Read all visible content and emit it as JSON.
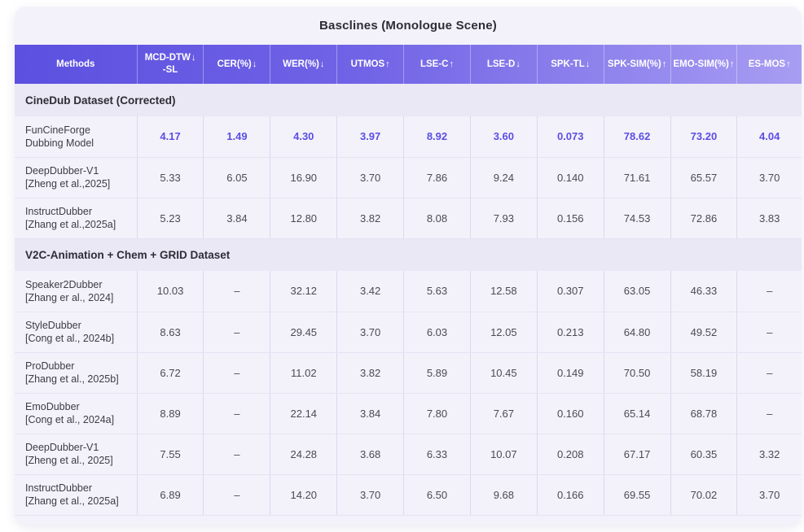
{
  "title": "Basclines (Monologue Scene)",
  "colors": {
    "header_gradient_left": "#5b50e0",
    "header_gradient_right": "#a79df2",
    "highlight_value": "#5b4ee2",
    "card_background": "#f3f2fa",
    "section_background": "#eae8f4",
    "header_text": "#ffffff",
    "body_text": "#4b4a54"
  },
  "table": {
    "columns": [
      {
        "lines": [
          "Methods"
        ],
        "arrow": ""
      },
      {
        "lines": [
          "MCD-DTW",
          "-SL"
        ],
        "arrow": "↓"
      },
      {
        "lines": [
          "CER(%)"
        ],
        "arrow": "↓"
      },
      {
        "lines": [
          "WER(%)"
        ],
        "arrow": "↓"
      },
      {
        "lines": [
          "UTMOS"
        ],
        "arrow": "↑"
      },
      {
        "lines": [
          "LSE-C"
        ],
        "arrow": "↑"
      },
      {
        "lines": [
          "LSE-D"
        ],
        "arrow": "↓"
      },
      {
        "lines": [
          "SPK-TL"
        ],
        "arrow": "↓"
      },
      {
        "lines": [
          "SPK-SIM(%)"
        ],
        "arrow": "↑"
      },
      {
        "lines": [
          "EMO-SIM(%)"
        ],
        "arrow": "↑"
      },
      {
        "lines": [
          "ES-MOS"
        ],
        "arrow": "↑"
      }
    ],
    "sections": [
      {
        "header": "CineDub Dataset (Corrected)",
        "rows": [
          {
            "method": [
              "FunCineForge",
              "Dubbing Model"
            ],
            "highlight": true,
            "values": [
              "4.17",
              "1.49",
              "4.30",
              "3.97",
              "8.92",
              "3.60",
              "0.073",
              "78.62",
              "73.20",
              "4.04"
            ]
          },
          {
            "method": [
              "DeepDubber-V1",
              "[Zheng et al.,2025]"
            ],
            "highlight": false,
            "values": [
              "5.33",
              "6.05",
              "16.90",
              "3.70",
              "7.86",
              "9.24",
              "0.140",
              "71.61",
              "65.57",
              "3.70"
            ]
          },
          {
            "method": [
              "InstructDubber",
              "[Zhang et al.,2025a]"
            ],
            "highlight": false,
            "values": [
              "5.23",
              "3.84",
              "12.80",
              "3.82",
              "8.08",
              "7.93",
              "0.156",
              "74.53",
              "72.86",
              "3.83"
            ]
          }
        ]
      },
      {
        "header": "V2C-Animation + Chem + GRID Dataset",
        "rows": [
          {
            "method": [
              "Speaker2Dubber",
              "[Zhang er al., 2024]"
            ],
            "highlight": false,
            "values": [
              "10.03",
              "–",
              "32.12",
              "3.42",
              "5.63",
              "12.58",
              "0.307",
              "63.05",
              "46.33",
              "–"
            ]
          },
          {
            "method": [
              "StyleDubber",
              "[Cong et al., 2024b]"
            ],
            "highlight": false,
            "values": [
              "8.63",
              "–",
              "29.45",
              "3.70",
              "6.03",
              "12.05",
              "0.213",
              "64.80",
              "49.52",
              "–"
            ]
          },
          {
            "method": [
              "ProDubber",
              "[Zhang et al., 2025b]"
            ],
            "highlight": false,
            "values": [
              "6.72",
              "–",
              "11.02",
              "3.82",
              "5.89",
              "10.45",
              "0.149",
              "70.50",
              "58.19",
              "–"
            ]
          },
          {
            "method": [
              "EmoDubber",
              "[Cong et al., 2024a]"
            ],
            "highlight": false,
            "values": [
              "8.89",
              "–",
              "22.14",
              "3.84",
              "7.80",
              "7.67",
              "0.160",
              "65.14",
              "68.78",
              "–"
            ]
          },
          {
            "method": [
              "DeepDubber-V1",
              "[Zheng et al., 2025]"
            ],
            "highlight": false,
            "values": [
              "7.55",
              "–",
              "24.28",
              "3.68",
              "6.33",
              "10.07",
              "0.208",
              "67.17",
              "60.35",
              "3.32"
            ]
          },
          {
            "method": [
              "InstructDubber",
              "[Zhang et al., 2025a]"
            ],
            "highlight": false,
            "values": [
              "6.89",
              "–",
              "14.20",
              "3.70",
              "6.50",
              "9.68",
              "0.166",
              "69.55",
              "70.02",
              "3.70"
            ]
          }
        ]
      }
    ]
  }
}
